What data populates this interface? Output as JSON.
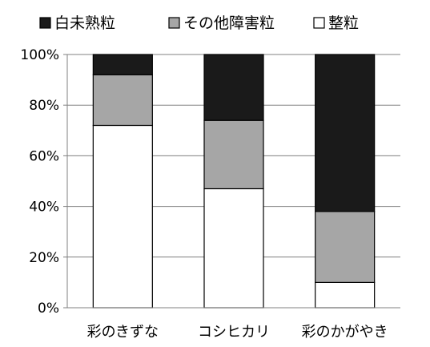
{
  "chart_data": {
    "type": "bar",
    "stacked": true,
    "percent_stacked": true,
    "categories": [
      "彩のきずな",
      "コシヒカリ",
      "彩のかがやき"
    ],
    "series": [
      {
        "name": "整粒",
        "values": [
          72,
          47,
          10
        ],
        "color": "#ffffff"
      },
      {
        "name": "その他障害粒",
        "values": [
          20,
          27,
          28
        ],
        "color": "#a6a6a6"
      },
      {
        "name": "白未熟粒",
        "values": [
          8,
          26,
          62
        ],
        "color": "#1a1a1a"
      }
    ],
    "legend_order": [
      "白未熟粒",
      "その他障害粒",
      "整粒"
    ],
    "yticks": [
      "0%",
      "20%",
      "40%",
      "60%",
      "80%",
      "100%"
    ],
    "ylim": [
      0,
      100
    ],
    "grid": true,
    "legend_position": "top"
  }
}
